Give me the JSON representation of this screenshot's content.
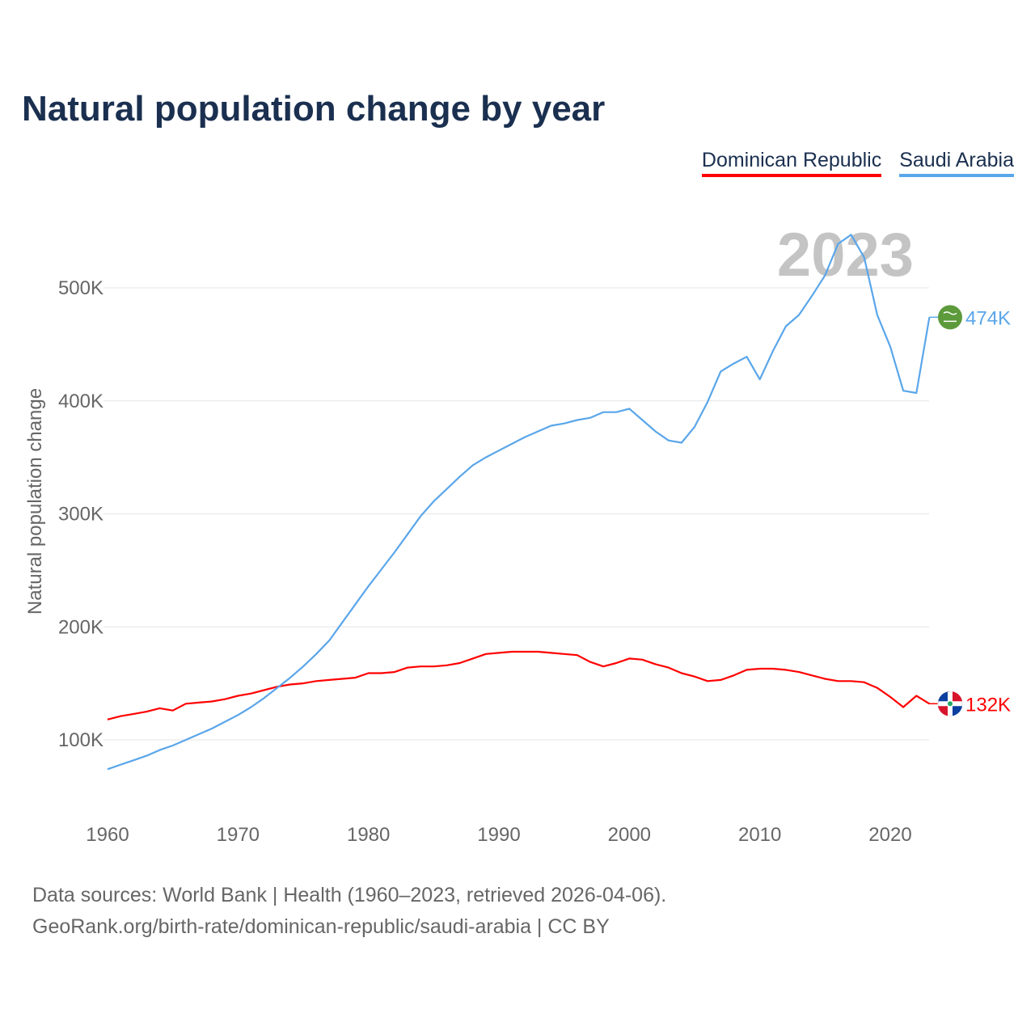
{
  "title": "Natural population change by year",
  "legend": [
    {
      "label": "Dominican Republic",
      "color": "#ff0000"
    },
    {
      "label": "Saudi Arabia",
      "color": "#5aa6ea"
    }
  ],
  "year_label": "2023",
  "source_lines": [
    "Data sources: World Bank | Health (1960–2023, retrieved 2026-04-06).",
    "GeoRank.org/birth-rate/dominican-republic/saudi-arabia | CC BY"
  ],
  "chart_data": {
    "type": "line",
    "title": "Natural population change by year",
    "xlabel": "",
    "ylabel": "Natural population change",
    "xlim": [
      1960,
      2023
    ],
    "ylim": [
      40000,
      560000
    ],
    "x_ticks": [
      1960,
      1970,
      1980,
      1990,
      2000,
      2010,
      2020
    ],
    "y_ticks": [
      100000,
      200000,
      300000,
      400000,
      500000
    ],
    "y_tick_labels": [
      "100K",
      "200K",
      "300K",
      "400K",
      "500K"
    ],
    "grid": true,
    "legend_position": "top-right",
    "x": [
      1960,
      1961,
      1962,
      1963,
      1964,
      1965,
      1966,
      1967,
      1968,
      1969,
      1970,
      1971,
      1972,
      1973,
      1974,
      1975,
      1976,
      1977,
      1978,
      1979,
      1980,
      1981,
      1982,
      1983,
      1984,
      1985,
      1986,
      1987,
      1988,
      1989,
      1990,
      1991,
      1992,
      1993,
      1994,
      1995,
      1996,
      1997,
      1998,
      1999,
      2000,
      2001,
      2002,
      2003,
      2004,
      2005,
      2006,
      2007,
      2008,
      2009,
      2010,
      2011,
      2012,
      2013,
      2014,
      2015,
      2016,
      2017,
      2018,
      2019,
      2020,
      2021,
      2022,
      2023
    ],
    "series": [
      {
        "name": "Dominican Republic",
        "color": "#ff0000",
        "end_label": "132K",
        "values": [
          118000,
          121000,
          123000,
          125000,
          128000,
          126000,
          132000,
          133000,
          134000,
          136000,
          139000,
          141000,
          144000,
          147000,
          149000,
          150000,
          152000,
          153000,
          154000,
          155000,
          159000,
          159000,
          160000,
          164000,
          165000,
          165000,
          166000,
          168000,
          172000,
          176000,
          177000,
          178000,
          178000,
          178000,
          177000,
          176000,
          175000,
          169000,
          165000,
          168000,
          172000,
          171000,
          167000,
          164000,
          159000,
          156000,
          152000,
          153000,
          157000,
          162000,
          163000,
          163000,
          162000,
          160000,
          157000,
          154000,
          152000,
          152000,
          151000,
          146000,
          138000,
          129000,
          139000,
          132000
        ]
      },
      {
        "name": "Saudi Arabia",
        "color": "#5aa6ea",
        "end_label": "474K",
        "values": [
          74000,
          78000,
          82000,
          86000,
          91000,
          95000,
          100000,
          105000,
          110000,
          116000,
          122000,
          129000,
          137000,
          146000,
          155000,
          165000,
          176000,
          188000,
          204000,
          220000,
          236000,
          251000,
          266000,
          282000,
          298000,
          311000,
          322000,
          333000,
          343000,
          350000,
          356000,
          362000,
          368000,
          373000,
          378000,
          380000,
          383000,
          385000,
          390000,
          390000,
          393000,
          383000,
          373000,
          365000,
          363000,
          377000,
          399000,
          426000,
          433000,
          439000,
          419000,
          444000,
          466000,
          476000,
          493000,
          511000,
          539000,
          547000,
          527000,
          476000,
          448000,
          409000,
          407000,
          474000
        ]
      }
    ]
  }
}
